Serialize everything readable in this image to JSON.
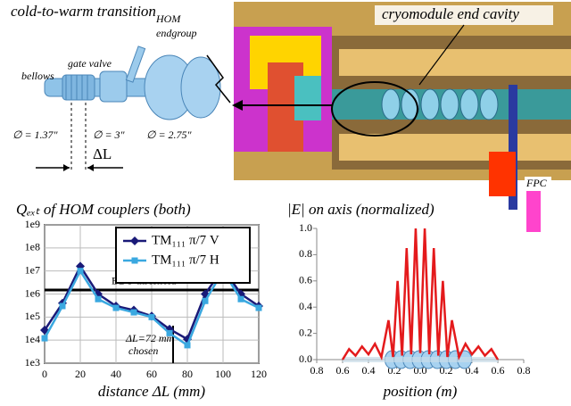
{
  "diagram": {
    "title": "cold-to-warm transition",
    "bellows": "bellows",
    "gate_valve": "gate valve",
    "hom": [
      "HOM",
      "endgroup"
    ],
    "d1": "∅ = 1.37″",
    "d2": "∅ = 3″",
    "d3": "∅ = 2.75″",
    "delta": "ΔL",
    "cavity": "cryomodule end cavity",
    "fpc": "FPC"
  },
  "chart_data": [
    {
      "type": "line",
      "title": "Qₑₓₜ of HOM couplers (both)",
      "x_label": "distance ΔL (mm)",
      "log_y": true,
      "grid": true,
      "frame": true,
      "legend": "upper-right",
      "x": [
        0,
        10,
        20,
        30,
        40,
        50,
        60,
        70,
        80,
        90,
        100,
        110,
        120
      ],
      "series": [
        {
          "name": "TM₁₁₁ π/7 V",
          "color": "#1a1a78",
          "marker": "diamond",
          "values": [
            27000,
            400000,
            16000000,
            1000000,
            300000,
            200000,
            110000,
            30000,
            11000,
            1000000,
            13000000,
            1000000,
            300000
          ]
        },
        {
          "name": "TM₁₁₁ π/7 H",
          "color": "#3aa8e0",
          "marker": "square",
          "values": [
            12000,
            300000,
            10000000,
            600000,
            250000,
            160000,
            100000,
            20000,
            6000,
            500000,
            10000000,
            600000,
            250000
          ]
        }
      ],
      "threshold": {
        "label": "BBU threshold",
        "value": 1500000
      },
      "chosen": {
        "label": [
          "ΔL=72 mm",
          "chosen"
        ],
        "x": 72
      },
      "xlim": [
        0,
        120
      ],
      "xticks": [
        0,
        20,
        40,
        60,
        80,
        100,
        120
      ],
      "ylim": [
        1000,
        1000000000
      ],
      "yticks": [
        {
          "value": 1000,
          "label": "1e3"
        },
        {
          "value": 10000,
          "label": "1e4"
        },
        {
          "value": 100000,
          "label": "1e5"
        },
        {
          "value": 1000000,
          "label": "1e6"
        },
        {
          "value": 10000000,
          "label": "1e7"
        },
        {
          "value": 100000000,
          "label": "1e8"
        },
        {
          "value": 1000000000,
          "label": "1e9"
        }
      ]
    },
    {
      "type": "line",
      "title": "|E| on axis (normalized)",
      "x_label": "position (m)",
      "log_y": false,
      "grid": false,
      "frame": false,
      "x": [
        -0.6,
        -0.55,
        -0.5,
        -0.45,
        -0.4,
        -0.35,
        -0.3,
        -0.245,
        -0.21,
        -0.175,
        -0.14,
        -0.105,
        -0.07,
        -0.035,
        0,
        0.035,
        0.07,
        0.105,
        0.14,
        0.175,
        0.21,
        0.245,
        0.3,
        0.35,
        0.4,
        0.45,
        0.5,
        0.55,
        0.6
      ],
      "series": [
        {
          "name": null,
          "color": "#e41a1c",
          "marker": "none",
          "values": [
            0,
            0.08,
            0.03,
            0.1,
            0.04,
            0.12,
            0.02,
            0.3,
            0.02,
            0.6,
            0.03,
            0.85,
            0.04,
            1.0,
            0.05,
            1.0,
            0.04,
            0.85,
            0.03,
            0.6,
            0.02,
            0.3,
            0.02,
            0.12,
            0.04,
            0.1,
            0.03,
            0.08,
            0
          ]
        }
      ],
      "xlim": [
        -0.8,
        0.8
      ],
      "xticks": [
        {
          "value": -0.8,
          "label": "0.8"
        },
        {
          "value": -0.6,
          "label": "0.6"
        },
        {
          "value": -0.4,
          "label": "0.4"
        },
        {
          "value": -0.2,
          "label": "0.2"
        },
        {
          "value": 0,
          "label": "0.0"
        },
        0.2,
        0.4,
        0.6,
        0.8
      ],
      "ylim": [
        0,
        1
      ],
      "yticks": [
        {
          "value": 0,
          "label": "0.0"
        },
        0.2,
        0.4,
        0.6,
        0.8,
        {
          "value": 1,
          "label": "1.0"
        }
      ]
    }
  ]
}
